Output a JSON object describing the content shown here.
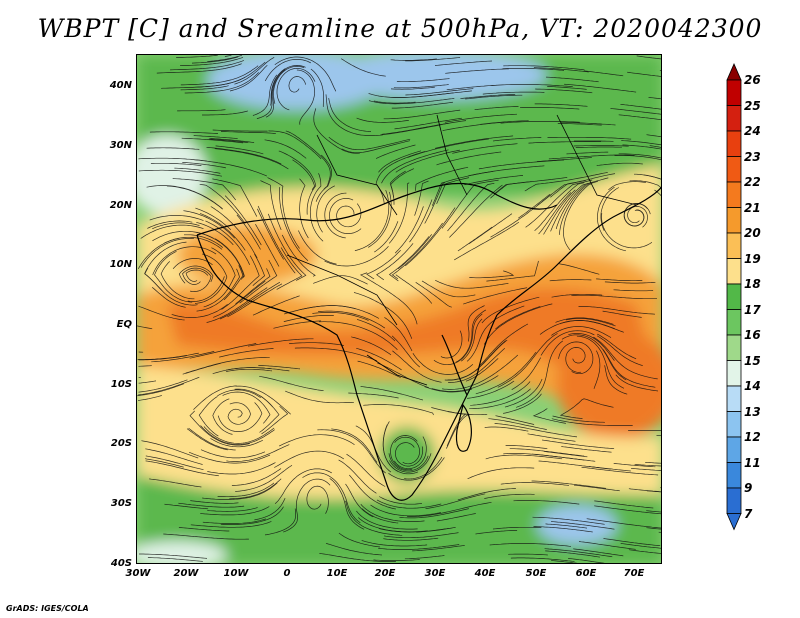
{
  "title": "WBPT [C] and Sreamline at 500hPa, VT: 2020042300",
  "credit": "GrADS: IGES/COLA",
  "lat_ticks": [
    "40N",
    "30N",
    "20N",
    "10N",
    "EQ",
    "10S",
    "20S",
    "30S",
    "40S"
  ],
  "lon_ticks": [
    "30W",
    "20W",
    "10W",
    "0",
    "10E",
    "20E",
    "30E",
    "40E",
    "50E",
    "60E",
    "70E"
  ],
  "colorbar": {
    "labels": [
      "26",
      "25",
      "24",
      "23",
      "22",
      "21",
      "20",
      "19",
      "18",
      "17",
      "16",
      "15",
      "14",
      "13",
      "12",
      "11",
      "9",
      "7"
    ],
    "colors": [
      "#c00000",
      "#d42010",
      "#e8400f",
      "#f05a14",
      "#f47a1e",
      "#f59a2c",
      "#fbbf56",
      "#fde08c",
      "#52b848",
      "#6cc660",
      "#9fd98a",
      "#e2f4e8",
      "#b8dcf6",
      "#8cc4f0",
      "#5ea6e6",
      "#3a88dc",
      "#2a6ed2"
    ],
    "top_arrow_color": "#8a0000",
    "bottom_arrow_color": "#2a6ed2"
  },
  "map_colors": {
    "cold": "#9cc6ec",
    "cool": "#5cb84e",
    "mild": "#8ad076",
    "warm": "#fde08c",
    "hot": "#f5a23a",
    "hotter": "#ef7a26",
    "pale": "#e0f2e6"
  }
}
